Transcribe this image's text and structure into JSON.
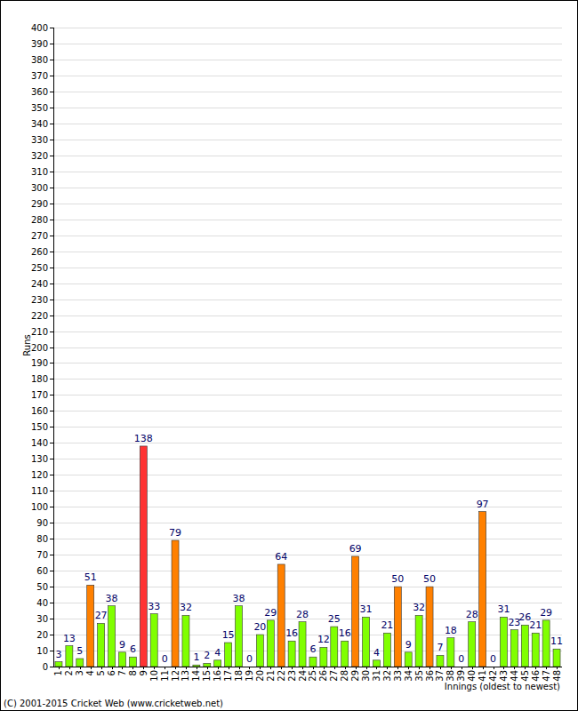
{
  "chart_data": {
    "type": "bar",
    "x_label": "Innings (oldest to newest)",
    "y_label": "Runs",
    "annotations": [
      "(C) 2001-2015 Cricket Web (www.cricketweb.net)"
    ],
    "categories": [
      "1",
      "2",
      "3",
      "4",
      "5",
      "6",
      "7",
      "8",
      "9",
      "10",
      "11",
      "12",
      "13",
      "14",
      "15",
      "16",
      "17",
      "18",
      "19",
      "20",
      "21",
      "22",
      "23",
      "24",
      "25",
      "26",
      "27",
      "28",
      "29",
      "30",
      "31",
      "32",
      "33",
      "34",
      "35",
      "36",
      "37",
      "38",
      "39",
      "40",
      "41",
      "42",
      "43",
      "44",
      "45",
      "46",
      "47",
      "48"
    ],
    "values": [
      3,
      13,
      5,
      51,
      27,
      38,
      9,
      6,
      138,
      33,
      0,
      79,
      32,
      1,
      2,
      4,
      15,
      38,
      0,
      20,
      29,
      64,
      16,
      28,
      6,
      12,
      25,
      16,
      69,
      31,
      4,
      21,
      50,
      9,
      32,
      50,
      7,
      18,
      0,
      28,
      97,
      0,
      31,
      23,
      26,
      21,
      29,
      11
    ],
    "colors": [
      "#80ff00",
      "#80ff00",
      "#80ff00",
      "#ff8000",
      "#80ff00",
      "#80ff00",
      "#80ff00",
      "#80ff00",
      "#ff3333",
      "#80ff00",
      "#80ff00",
      "#ff8000",
      "#80ff00",
      "#80ff00",
      "#80ff00",
      "#80ff00",
      "#80ff00",
      "#80ff00",
      "#80ff00",
      "#80ff00",
      "#80ff00",
      "#ff8000",
      "#80ff00",
      "#80ff00",
      "#80ff00",
      "#80ff00",
      "#80ff00",
      "#80ff00",
      "#ff8000",
      "#80ff00",
      "#80ff00",
      "#80ff00",
      "#ff8000",
      "#80ff00",
      "#80ff00",
      "#ff8000",
      "#80ff00",
      "#80ff00",
      "#80ff00",
      "#80ff00",
      "#ff8000",
      "#80ff00",
      "#80ff00",
      "#80ff00",
      "#80ff00",
      "#80ff00",
      "#80ff00",
      "#80ff00"
    ],
    "ylim": [
      0,
      400
    ],
    "yticks": [
      0,
      10,
      20,
      30,
      40,
      50,
      60,
      70,
      80,
      90,
      100,
      110,
      120,
      130,
      140,
      150,
      160,
      170,
      180,
      190,
      200,
      210,
      220,
      230,
      240,
      250,
      260,
      270,
      280,
      290,
      300,
      310,
      320,
      330,
      340,
      350,
      360,
      370,
      380,
      390,
      400
    ],
    "grid": true,
    "data_labels": true
  }
}
